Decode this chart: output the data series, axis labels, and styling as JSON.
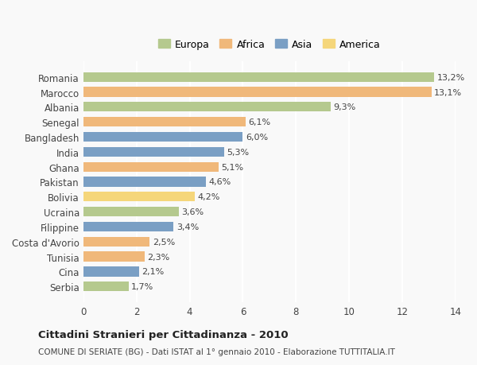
{
  "categories": [
    "Romania",
    "Marocco",
    "Albania",
    "Senegal",
    "Bangladesh",
    "India",
    "Ghana",
    "Pakistan",
    "Bolivia",
    "Ucraina",
    "Filippine",
    "Costa d'Avorio",
    "Tunisia",
    "Cina",
    "Serbia"
  ],
  "values": [
    13.2,
    13.1,
    9.3,
    6.1,
    6.0,
    5.3,
    5.1,
    4.6,
    4.2,
    3.6,
    3.4,
    2.5,
    2.3,
    2.1,
    1.7
  ],
  "labels": [
    "13,2%",
    "13,1%",
    "9,3%",
    "6,1%",
    "6,0%",
    "5,3%",
    "5,1%",
    "4,6%",
    "4,2%",
    "3,6%",
    "3,4%",
    "2,5%",
    "2,3%",
    "2,1%",
    "1,7%"
  ],
  "continents": [
    "Europa",
    "Africa",
    "Europa",
    "Africa",
    "Asia",
    "Asia",
    "Africa",
    "Asia",
    "America",
    "Europa",
    "Asia",
    "Africa",
    "Africa",
    "Asia",
    "Europa"
  ],
  "colors": {
    "Europa": "#b5c98e",
    "Africa": "#f0b87a",
    "Asia": "#7a9fc4",
    "America": "#f5d67a"
  },
  "legend_order": [
    "Europa",
    "Africa",
    "Asia",
    "America"
  ],
  "title": "Cittadini Stranieri per Cittadinanza - 2010",
  "subtitle": "COMUNE DI SERIATE (BG) - Dati ISTAT al 1° gennaio 2010 - Elaborazione TUTTITALIA.IT",
  "xlim": [
    0,
    14
  ],
  "xticks": [
    0,
    2,
    4,
    6,
    8,
    10,
    12,
    14
  ],
  "background_color": "#f9f9f9",
  "grid_color": "#ffffff",
  "bar_height": 0.65
}
